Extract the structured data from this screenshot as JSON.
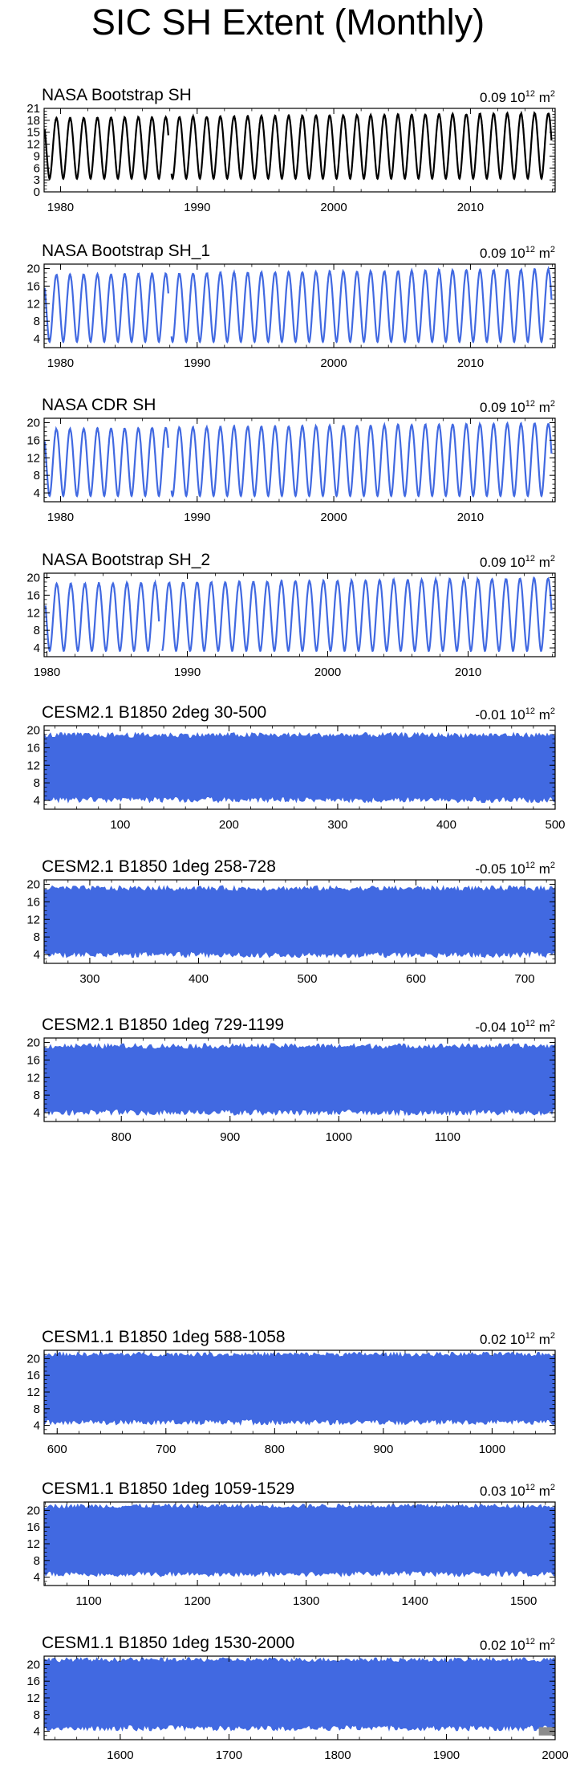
{
  "title": "SIC SH Extent (Monthly)",
  "colors": {
    "black": "#000000",
    "blue": "#4169e1",
    "gray": "#8c8c8c"
  },
  "chart_data": [
    {
      "type": "line",
      "title": "NASA Bootstrap SH",
      "trend": "0.09",
      "unit_base": "10",
      "unit_exp": "12",
      "unit_suffix": "m",
      "unit_suffix_exp": "2",
      "color": "black",
      "xlim": [
        1978.8,
        2016.2
      ],
      "ylim": [
        0,
        21
      ],
      "xticks": [
        1980,
        1990,
        2000,
        2010
      ],
      "yticks": [
        0,
        3,
        6,
        9,
        12,
        15,
        18,
        21
      ],
      "seasonal": {
        "start": 1978.85,
        "end": 2015.95,
        "min": 3.3,
        "max": 18.8,
        "max_peak_early": 18.5,
        "max_peak_late": 19.8,
        "gap": [
          1987.9,
          1988.1
        ]
      }
    },
    {
      "type": "line",
      "title": "NASA Bootstrap SH_1",
      "trend": "0.09",
      "unit_base": "10",
      "unit_exp": "12",
      "unit_suffix": "m",
      "unit_suffix_exp": "2",
      "color": "blue",
      "xlim": [
        1978.8,
        2016.2
      ],
      "ylim": [
        2,
        21
      ],
      "xticks": [
        1980,
        1990,
        2000,
        2010
      ],
      "yticks": [
        4,
        8,
        12,
        16,
        20
      ],
      "seasonal": {
        "start": 1978.85,
        "end": 2015.95,
        "min": 3.3,
        "max": 18.8,
        "max_peak_early": 18.5,
        "max_peak_late": 19.8,
        "gap": [
          1987.9,
          1988.1
        ]
      }
    },
    {
      "type": "line",
      "title": "NASA CDR SH",
      "trend": "0.09",
      "unit_base": "10",
      "unit_exp": "12",
      "unit_suffix": "m",
      "unit_suffix_exp": "2",
      "color": "blue",
      "xlim": [
        1978.8,
        2016.2
      ],
      "ylim": [
        2,
        21
      ],
      "xticks": [
        1980,
        1990,
        2000,
        2010
      ],
      "yticks": [
        4,
        8,
        12,
        16,
        20
      ],
      "seasonal": {
        "start": 1978.85,
        "end": 2015.95,
        "min": 3.3,
        "max": 18.8,
        "max_peak_early": 18.5,
        "max_peak_late": 19.8,
        "gap": [
          1987.9,
          1988.1
        ]
      }
    },
    {
      "type": "line",
      "title": "NASA Bootstrap SH_2",
      "trend": "0.09",
      "unit_base": "10",
      "unit_exp": "12",
      "unit_suffix": "m",
      "unit_suffix_exp": "2",
      "color": "blue",
      "xlim": [
        1979.8,
        2016.2
      ],
      "ylim": [
        2,
        21
      ],
      "xticks": [
        1980,
        1990,
        2000,
        2010
      ],
      "yticks": [
        4,
        8,
        12,
        16,
        20
      ],
      "seasonal": {
        "start": 1979.9,
        "end": 2015.95,
        "min": 3.3,
        "max": 18.8,
        "max_peak_early": 18.5,
        "max_peak_late": 19.8,
        "gap": [
          1988.0,
          1988.2
        ]
      }
    },
    {
      "type": "area",
      "title": "CESM2.1 B1850 2deg 30-500",
      "trend": "-0.01",
      "unit_base": "10",
      "unit_exp": "12",
      "unit_suffix": "m",
      "unit_suffix_exp": "2",
      "color": "blue",
      "xlim": [
        30,
        500
      ],
      "ylim": [
        2,
        21
      ],
      "xticks": [
        100,
        200,
        300,
        400,
        500
      ],
      "yticks": [
        4,
        8,
        12,
        16,
        20
      ],
      "band": {
        "low": 4.6,
        "high": 18.6,
        "jitter_low": 1.0,
        "jitter_high": 0.9
      }
    },
    {
      "type": "area",
      "title": "CESM2.1 B1850 1deg 258-728",
      "trend": "-0.05",
      "unit_base": "10",
      "unit_exp": "12",
      "unit_suffix": "m",
      "unit_suffix_exp": "2",
      "color": "blue",
      "xlim": [
        258,
        728
      ],
      "ylim": [
        2,
        21
      ],
      "xticks": [
        300,
        400,
        500,
        600,
        700
      ],
      "yticks": [
        4,
        8,
        12,
        16,
        20
      ],
      "band": {
        "low": 4.4,
        "high": 18.8,
        "jitter_low": 1.0,
        "jitter_high": 0.9
      }
    },
    {
      "type": "area",
      "title": "CESM2.1 B1850 1deg 729-1199",
      "trend": "-0.04",
      "unit_base": "10",
      "unit_exp": "12",
      "unit_suffix": "m",
      "unit_suffix_exp": "2",
      "color": "blue",
      "xlim": [
        729,
        1199
      ],
      "ylim": [
        2,
        21
      ],
      "xticks": [
        800,
        900,
        1000,
        1100
      ],
      "yticks": [
        4,
        8,
        12,
        16,
        20
      ],
      "band": {
        "low": 4.5,
        "high": 18.9,
        "jitter_low": 1.0,
        "jitter_high": 0.9
      }
    },
    {
      "type": "area",
      "title": "CESM1.1 B1850 1deg 588-1058",
      "trend": "0.02",
      "unit_base": "10",
      "unit_exp": "12",
      "unit_suffix": "m",
      "unit_suffix_exp": "2",
      "color": "blue",
      "xlim": [
        588,
        1058
      ],
      "ylim": [
        2,
        22
      ],
      "xticks": [
        600,
        700,
        800,
        900,
        1000
      ],
      "yticks": [
        4,
        8,
        12,
        16,
        20
      ],
      "band": {
        "low": 5.2,
        "high": 20.8,
        "jitter_low": 1.0,
        "jitter_high": 0.8
      }
    },
    {
      "type": "area",
      "title": "CESM1.1 B1850 1deg 1059-1529",
      "trend": "0.03",
      "unit_base": "10",
      "unit_exp": "12",
      "unit_suffix": "m",
      "unit_suffix_exp": "2",
      "color": "blue",
      "xlim": [
        1059,
        1529
      ],
      "ylim": [
        2,
        22
      ],
      "xticks": [
        1100,
        1200,
        1300,
        1400,
        1500
      ],
      "yticks": [
        4,
        8,
        12,
        16,
        20
      ],
      "band": {
        "low": 5.2,
        "high": 20.8,
        "jitter_low": 1.0,
        "jitter_high": 0.8
      }
    },
    {
      "type": "area",
      "title": "CESM1.1 B1850 1deg 1530-2000",
      "trend": "0.02",
      "unit_base": "10",
      "unit_exp": "12",
      "unit_suffix": "m",
      "unit_suffix_exp": "2",
      "color": "blue",
      "xlim": [
        1530,
        2000
      ],
      "ylim": [
        2,
        22
      ],
      "xticks": [
        1600,
        1700,
        1800,
        1900,
        2000
      ],
      "yticks": [
        4,
        8,
        12,
        16,
        20
      ],
      "band": {
        "low": 5.2,
        "high": 20.9,
        "jitter_low": 1.0,
        "jitter_high": 0.8
      },
      "gray_overlay": {
        "x": [
          1985,
          2000
        ],
        "low": 3.0,
        "high": 5.0
      }
    }
  ]
}
